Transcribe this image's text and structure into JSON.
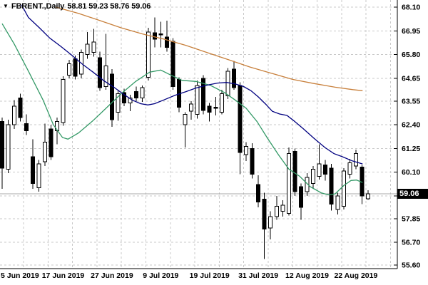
{
  "title": {
    "symbol_period": "FBRENT.,Daily",
    "ohlc_text": "58.81 59.23 58.76 59.06",
    "open": "58.81",
    "high": "59.23",
    "low": "58.76",
    "close": "59.06"
  },
  "price_label": {
    "text": "59.06",
    "value": 59.06
  },
  "colors": {
    "background": "#ffffff",
    "grid": "#c9c9c9",
    "axis": "#000000",
    "current_price_line": "#a8a8a8",
    "candle_up_fill": "#ffffff",
    "candle_down_fill": "#000000",
    "candle_outline": "#000000",
    "ma_fast": "#339966",
    "ma_medium": "#000080",
    "ma_slow": "#c8803c",
    "price_tag_bg": "#000000",
    "price_tag_text": "#ffffff"
  },
  "axes": {
    "y_ticks": [
      "68.10",
      "66.95",
      "65.80",
      "64.65",
      "63.55",
      "62.40",
      "61.25",
      "60.10",
      "58.95",
      "57.85",
      "56.70",
      "55.60"
    ],
    "y_tick_values": [
      68.1,
      66.95,
      65.8,
      64.65,
      63.55,
      62.4,
      61.25,
      60.1,
      58.95,
      57.85,
      56.7,
      55.6
    ],
    "x_ticks": [
      {
        "label": "5 Jun 2019",
        "index": 2
      },
      {
        "label": "17 Jun 2019",
        "index": 10
      },
      {
        "label": "27 Jun 2019",
        "index": 18
      },
      {
        "label": "9 Jul 2019",
        "index": 26
      },
      {
        "label": "19 Jul 2019",
        "index": 34
      },
      {
        "label": "31 Jul 2019",
        "index": 42
      },
      {
        "label": "12 Aug 2019",
        "index": 50
      },
      {
        "label": "22 Aug 2019",
        "index": 58
      }
    ]
  },
  "chart_data": {
    "type": "candlestick",
    "symbol": "FBRENT.",
    "period": "Daily",
    "ylim": [
      55.6,
      68.1
    ],
    "current_price": 59.06,
    "grid": true,
    "candle_columns": [
      "date",
      "open",
      "high",
      "low",
      "close"
    ],
    "candles": [
      [
        "3 Jun 2019",
        62.55,
        62.75,
        59.3,
        60.3
      ],
      [
        "4 Jun 2019",
        60.25,
        62.65,
        60.05,
        62.4
      ],
      [
        "5 Jun 2019",
        62.4,
        63.6,
        62.2,
        63.3
      ],
      [
        "6 Jun 2019",
        63.7,
        63.9,
        62.55,
        62.75
      ],
      [
        "7 Jun 2019",
        62.45,
        62.9,
        61.9,
        62.1
      ],
      [
        "10 Jun 2019",
        60.85,
        61.7,
        59.3,
        59.55
      ],
      [
        "11 Jun 2019",
        59.35,
        60.7,
        59.15,
        60.5
      ],
      [
        "12 Jun 2019",
        60.6,
        62.45,
        60.4,
        61.55
      ],
      [
        "13 Jun 2019",
        62.2,
        62.4,
        60.7,
        60.85
      ],
      [
        "14 Jun 2019",
        62.1,
        62.75,
        61.45,
        62.55
      ],
      [
        "17 Jun 2019",
        62.5,
        64.75,
        62.35,
        64.6
      ],
      [
        "18 Jun 2019",
        64.8,
        65.55,
        64.65,
        65.35
      ],
      [
        "19 Jun 2019",
        65.6,
        65.75,
        64.6,
        64.75
      ],
      [
        "20 Jun 2019",
        64.85,
        66.05,
        64.65,
        65.9
      ],
      [
        "21 Jun 2019",
        65.8,
        66.9,
        65.6,
        66.3
      ],
      [
        "24 Jun 2019",
        65.9,
        67.05,
        65.7,
        66.4
      ],
      [
        "25 Jun 2019",
        65.65,
        65.95,
        64.05,
        64.2
      ],
      [
        "26 Jun 2019",
        64.25,
        66.8,
        64.1,
        65.25
      ],
      [
        "27 Jun 2019",
        64.85,
        65.1,
        62.3,
        62.65
      ],
      [
        "28 Jun 2019",
        63.0,
        64.1,
        62.6,
        63.9
      ],
      [
        "1 Jul 2019",
        63.95,
        64.15,
        63.3,
        63.45
      ],
      [
        "2 Jul 2019",
        63.45,
        63.85,
        63.05,
        63.7
      ],
      [
        "3 Jul 2019",
        64.0,
        64.25,
        63.55,
        63.7
      ],
      [
        "4 Jul 2019",
        63.7,
        64.3,
        63.5,
        64.2
      ],
      [
        "5 Jul 2019",
        64.7,
        67.1,
        64.55,
        66.9
      ],
      [
        "8 Jul 2019",
        66.85,
        67.6,
        66.15,
        66.55
      ],
      [
        "9 Jul 2019",
        66.8,
        67.4,
        66.15,
        66.75
      ],
      [
        "10 Jul 2019",
        66.65,
        67.45,
        65.95,
        66.15
      ],
      [
        "11 Jul 2019",
        66.45,
        66.6,
        64.1,
        64.25
      ],
      [
        "12 Jul 2019",
        64.6,
        64.7,
        63.0,
        63.25
      ],
      [
        "15 Jul 2019",
        62.4,
        63.0,
        61.3,
        62.9
      ],
      [
        "16 Jul 2019",
        63.05,
        63.55,
        62.65,
        63.4
      ],
      [
        "17 Jul 2019",
        62.9,
        64.55,
        62.7,
        64.3
      ],
      [
        "18 Jul 2019",
        64.65,
        64.8,
        62.9,
        63.1
      ],
      [
        "19 Jul 2019",
        63.3,
        63.45,
        62.55,
        63.0
      ],
      [
        "22 Jul 2019",
        63.25,
        63.75,
        62.85,
        63.2
      ],
      [
        "23 Jul 2019",
        63.0,
        64.1,
        62.9,
        63.9
      ],
      [
        "24 Jul 2019",
        63.8,
        65.15,
        63.65,
        65.0
      ],
      [
        "25 Jul 2019",
        65.1,
        65.5,
        64.1,
        64.2
      ],
      [
        "26 Jul 2019",
        64.3,
        64.45,
        60.0,
        61.05
      ],
      [
        "29 Jul 2019",
        60.95,
        61.55,
        60.65,
        61.35
      ],
      [
        "30 Jul 2019",
        61.25,
        61.5,
        59.8,
        60.0
      ],
      [
        "31 Jul 2019",
        59.5,
        59.95,
        58.4,
        58.65
      ],
      [
        "1 Aug 2019",
        58.8,
        59.1,
        55.9,
        57.35
      ],
      [
        "2 Aug 2019",
        57.4,
        58.2,
        56.85,
        57.95
      ],
      [
        "5 Aug 2019",
        57.95,
        58.95,
        57.8,
        58.45
      ],
      [
        "6 Aug 2019",
        58.2,
        58.75,
        57.95,
        58.5
      ],
      [
        "7 Aug 2019",
        58.1,
        61.3,
        58.0,
        61.0
      ],
      [
        "8 Aug 2019",
        61.1,
        61.25,
        58.95,
        59.15
      ],
      [
        "9 Aug 2019",
        59.4,
        59.55,
        57.8,
        58.4
      ],
      [
        "12 Aug 2019",
        59.15,
        60.05,
        58.95,
        59.85
      ],
      [
        "13 Aug 2019",
        59.55,
        60.4,
        59.3,
        60.25
      ],
      [
        "14 Aug 2019",
        59.9,
        61.45,
        59.75,
        60.5
      ],
      [
        "15 Aug 2019",
        60.45,
        60.7,
        59.7,
        60.0
      ],
      [
        "16 Aug 2019",
        60.3,
        60.5,
        58.25,
        58.55
      ],
      [
        "19 Aug 2019",
        58.3,
        59.1,
        58.05,
        58.95
      ],
      [
        "20 Aug 2019",
        58.45,
        60.3,
        58.3,
        60.15
      ],
      [
        "21 Aug 2019",
        60.0,
        60.75,
        59.8,
        60.55
      ],
      [
        "22 Aug 2019",
        60.4,
        61.2,
        60.25,
        61.0
      ],
      [
        "23 Aug 2019",
        60.35,
        60.45,
        58.55,
        58.95
      ],
      [
        "26 Aug 2019",
        58.81,
        59.23,
        58.76,
        59.06
      ]
    ],
    "moving_averages": [
      {
        "name": "ma-fast",
        "color": "#339966",
        "points": [
          [
            0,
            67.3
          ],
          [
            2,
            66.3
          ],
          [
            4.3,
            65.0
          ],
          [
            6.7,
            63.6
          ],
          [
            8.4,
            62.4
          ],
          [
            9.9,
            61.78
          ],
          [
            10.8,
            61.7
          ],
          [
            12.5,
            62.0
          ],
          [
            14.9,
            62.6
          ],
          [
            17.2,
            63.25
          ],
          [
            19.5,
            63.9
          ],
          [
            21.9,
            64.5
          ],
          [
            24.2,
            64.95
          ],
          [
            26,
            65.05
          ],
          [
            27.7,
            64.8
          ],
          [
            29.5,
            64.55
          ],
          [
            31.8,
            64.5
          ],
          [
            34.2,
            64.3
          ],
          [
            36.5,
            63.95
          ],
          [
            38.2,
            63.6
          ],
          [
            40,
            63.2
          ],
          [
            41.8,
            62.55
          ],
          [
            43.5,
            61.75
          ],
          [
            45.3,
            60.95
          ],
          [
            47,
            60.25
          ],
          [
            48.8,
            59.9
          ],
          [
            50.5,
            59.4
          ],
          [
            52.3,
            59.1
          ],
          [
            53.5,
            59.0
          ],
          [
            54.6,
            59.05
          ],
          [
            56,
            59.45
          ],
          [
            57.2,
            59.7
          ],
          [
            58.1,
            59.72
          ],
          [
            59.1,
            59.6
          ]
        ]
      },
      {
        "name": "ma-medium",
        "color": "#000080",
        "points": [
          [
            3.2,
            68.2
          ],
          [
            4.3,
            67.6
          ],
          [
            6.1,
            67.1
          ],
          [
            7.8,
            66.6
          ],
          [
            9.6,
            66.2
          ],
          [
            11.3,
            65.8
          ],
          [
            13.1,
            65.35
          ],
          [
            14.9,
            64.95
          ],
          [
            16.6,
            64.55
          ],
          [
            18.4,
            64.2
          ],
          [
            19.8,
            63.9
          ],
          [
            21.3,
            63.6
          ],
          [
            22.7,
            63.42
          ],
          [
            23.9,
            63.36
          ],
          [
            25,
            63.42
          ],
          [
            26.5,
            63.6
          ],
          [
            28.3,
            63.82
          ],
          [
            30.1,
            64.0
          ],
          [
            31.8,
            64.18
          ],
          [
            33.6,
            64.32
          ],
          [
            35.3,
            64.42
          ],
          [
            36.8,
            64.45
          ],
          [
            38.2,
            64.38
          ],
          [
            39.6,
            64.25
          ],
          [
            40.8,
            64.05
          ],
          [
            42,
            63.75
          ],
          [
            43.2,
            63.4
          ],
          [
            44.3,
            63.05
          ],
          [
            45.5,
            62.92
          ],
          [
            46.7,
            62.85
          ],
          [
            47.8,
            62.6
          ],
          [
            49.4,
            62.2
          ],
          [
            51.1,
            61.75
          ],
          [
            52.9,
            61.3
          ],
          [
            54.4,
            61.0
          ],
          [
            55.8,
            60.85
          ],
          [
            57.4,
            60.65
          ],
          [
            59.1,
            60.5
          ]
        ]
      },
      {
        "name": "ma-slow",
        "color": "#c8803c",
        "points": [
          [
            8.8,
            68.1
          ],
          [
            12.5,
            67.8
          ],
          [
            16,
            67.45
          ],
          [
            19.5,
            67.1
          ],
          [
            23,
            66.8
          ],
          [
            26.5,
            66.55
          ],
          [
            30.1,
            66.25
          ],
          [
            33.6,
            65.9
          ],
          [
            37.1,
            65.55
          ],
          [
            40.6,
            65.2
          ],
          [
            44.1,
            64.9
          ],
          [
            47.6,
            64.6
          ],
          [
            51.1,
            64.4
          ],
          [
            54.6,
            64.22
          ],
          [
            57.5,
            64.1
          ],
          [
            59.1,
            64.05
          ]
        ]
      }
    ]
  }
}
